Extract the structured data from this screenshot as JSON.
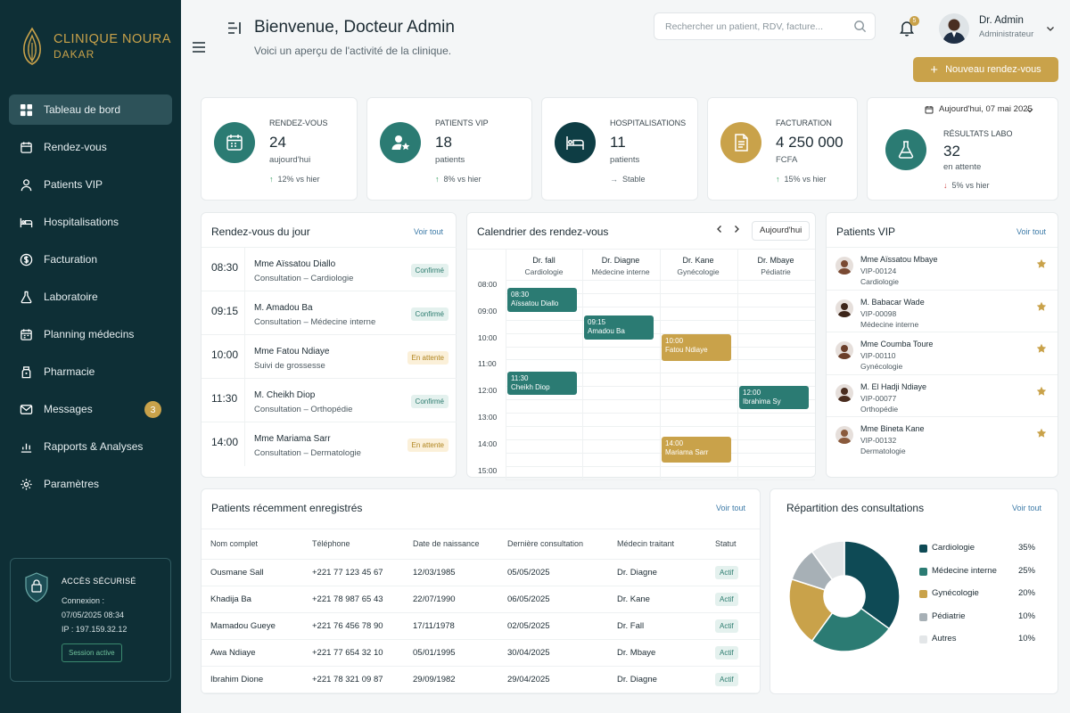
{
  "brand": {
    "line1": "CLINIQUE NOURA",
    "line2": "DAKAR"
  },
  "sidebar": {
    "items": [
      {
        "label": "Tableau de bord",
        "icon": "grid-icon"
      },
      {
        "label": "Rendez-vous",
        "icon": "calendar-icon"
      },
      {
        "label": "Patients VIP",
        "icon": "user-icon"
      },
      {
        "label": "Hospitalisations",
        "icon": "bed-icon"
      },
      {
        "label": "Facturation",
        "icon": "dollar-icon"
      },
      {
        "label": "Laboratoire",
        "icon": "flask-icon"
      },
      {
        "label": "Planning médecins",
        "icon": "calendar-check-icon"
      },
      {
        "label": "Pharmacie",
        "icon": "pill-icon"
      },
      {
        "label": "Messages",
        "icon": "mail-icon",
        "badge": "3"
      },
      {
        "label": "Rapports & Analyses",
        "icon": "chart-icon"
      },
      {
        "label": "Paramètres",
        "icon": "gear-icon"
      }
    ],
    "secure": {
      "title": "ACCÈS SÉCURISÉ",
      "line1": "Connexion :",
      "line2": "07/05/2025 08:34",
      "line3": "IP : 197.159.32.12",
      "session": "Session active"
    }
  },
  "header": {
    "title": "Bienvenue, Docteur Admin",
    "subtitle": "Voici un aperçu de l'activité de la clinique.",
    "search_placeholder": "Rechercher un patient, RDV, facture...",
    "notif_count": "5",
    "user_name": "Dr. Admin",
    "user_role": "Administrateur",
    "new_button": "Nouveau rendez-vous"
  },
  "stats": [
    {
      "label": "RENDEZ-VOUS",
      "value": "24",
      "unit": "aujourd'hui",
      "trend": "12% vs hier",
      "dir": "up",
      "color": "#2b7b73"
    },
    {
      "label": "PATIENTS VIP",
      "value": "18",
      "unit": "patients",
      "trend": "8% vs hier",
      "dir": "up",
      "color": "#2b7b73"
    },
    {
      "label": "HOSPITALISATIONS",
      "value": "11",
      "unit": "patients",
      "trend": "Stable",
      "dir": "neutral",
      "color": "#0e3d44"
    },
    {
      "label": "FACTURATION",
      "value": "4 250 000",
      "unit": "FCFA",
      "trend": "15% vs hier",
      "dir": "up",
      "color": "#c9a24a"
    },
    {
      "label": "RÉSULTATS LABO",
      "value": "32",
      "unit": "en attente",
      "trend": "5% vs hier",
      "dir": "down",
      "color": "#2b7b73"
    }
  ],
  "date_label": "Aujourd'hui, 07 mai 2025",
  "rdv": {
    "title": "Rendez-vous du jour",
    "link": "Voir tout",
    "rows": [
      {
        "time": "08:30",
        "name": "Mme Aïssatou Diallo",
        "type": "Consultation – Cardiologie",
        "status": "Confirmé",
        "kind": "ok"
      },
      {
        "time": "09:15",
        "name": "M. Amadou Ba",
        "type": "Consultation – Médecine interne",
        "status": "Confirmé",
        "kind": "ok"
      },
      {
        "time": "10:00",
        "name": "Mme Fatou Ndiaye",
        "type": "Suivi de grossesse",
        "status": "En attente",
        "kind": "wait"
      },
      {
        "time": "11:30",
        "name": "M. Cheikh Diop",
        "type": "Consultation – Orthopédie",
        "status": "Confirmé",
        "kind": "ok"
      },
      {
        "time": "14:00",
        "name": "Mme Mariama Sarr",
        "type": "Consultation – Dermatologie",
        "status": "En attente",
        "kind": "wait"
      }
    ]
  },
  "calendar": {
    "title": "Calendrier des rendez-vous",
    "today": "Aujourd'hui",
    "doctors": [
      {
        "name": "Dr. fall",
        "spec": "Cardiologie"
      },
      {
        "name": "Dr. Diagne",
        "spec": "Médecine interne"
      },
      {
        "name": "Dr. Kane",
        "spec": "Gynécologie"
      },
      {
        "name": "Dr. Mbaye",
        "spec": "Pédiatrie"
      }
    ],
    "hours": [
      "08:00",
      "09:00",
      "10:00",
      "11:00",
      "12:00",
      "13:00",
      "14:00",
      "15:00"
    ],
    "events": [
      {
        "time": "08:30",
        "name": "Aïssatou Diallo",
        "col": 0,
        "start": 8.3,
        "end": 9.2,
        "color": "teal"
      },
      {
        "time": "09:15",
        "name": "Amadou Ba",
        "col": 1,
        "start": 9.35,
        "end": 10.25,
        "color": "teal"
      },
      {
        "time": "10:00",
        "name": "Fatou Ndiaye",
        "col": 2,
        "start": 10.05,
        "end": 11.05,
        "color": "gold"
      },
      {
        "time": "11:30",
        "name": "Cheikh Diop",
        "col": 0,
        "start": 11.47,
        "end": 12.33,
        "color": "teal"
      },
      {
        "time": "12:00",
        "name": "Ibrahima Sy",
        "col": 3,
        "start": 12.0,
        "end": 12.87,
        "color": "teal"
      },
      {
        "time": "14:00",
        "name": "Mariama Sarr",
        "col": 2,
        "start": 13.92,
        "end": 14.87,
        "color": "gold"
      }
    ]
  },
  "vip": {
    "title": "Patients VIP",
    "link": "Voir tout",
    "rows": [
      {
        "name": "Mme Aïssatou Mbaye",
        "id": "VIP-00124",
        "spec": "Cardiologie"
      },
      {
        "name": "M. Babacar Wade",
        "id": "VIP-00098",
        "spec": "Médecine interne"
      },
      {
        "name": "Mme Coumba Toure",
        "id": "VIP-00110",
        "spec": "Gynécologie"
      },
      {
        "name": "M. El Hadji Ndiaye",
        "id": "VIP-00077",
        "spec": "Orthopédie"
      },
      {
        "name": "Mme Bineta Kane",
        "id": "VIP-00132",
        "spec": "Dermatologie"
      }
    ]
  },
  "patients": {
    "title": "Patients récemment enregistrés",
    "link": "Voir tout",
    "columns": [
      "Nom complet",
      "Téléphone",
      "Date de naissance",
      "Dernière consultation",
      "Médecin traitant",
      "Statut"
    ],
    "rows": [
      [
        "Ousmane Sall",
        "+221 77 123 45 67",
        "12/03/1985",
        "05/05/2025",
        "Dr. Diagne",
        "Actif"
      ],
      [
        "Khadija Ba",
        "+221 78 987 65 43",
        "22/07/1990",
        "06/05/2025",
        "Dr. Kane",
        "Actif"
      ],
      [
        "Mamadou Gueye",
        "+221 76 456 78 90",
        "17/11/1978",
        "02/05/2025",
        "Dr. Fall",
        "Actif"
      ],
      [
        "Awa Ndiaye",
        "+221 77 654 32 10",
        "05/01/1995",
        "30/04/2025",
        "Dr. Mbaye",
        "Actif"
      ],
      [
        "Ibrahim Dione",
        "+221 78 321 09 87",
        "29/09/1982",
        "29/04/2025",
        "Dr. Diagne",
        "Actif"
      ]
    ]
  },
  "repartition": {
    "title": "Répartition des consultations",
    "link": "Voir tout",
    "slices": [
      {
        "label": "Cardiologie",
        "value": 35,
        "pct": "35%",
        "color": "#0e4a55"
      },
      {
        "label": "Médecine interne",
        "value": 25,
        "pct": "25%",
        "color": "#2b7b73"
      },
      {
        "label": "Gynécologie",
        "value": 20,
        "pct": "20%",
        "color": "#c9a24a"
      },
      {
        "label": "Pédiatrie",
        "value": 10,
        "pct": "10%",
        "color": "#a7b0b6"
      },
      {
        "label": "Autres",
        "value": 10,
        "pct": "10%",
        "color": "#e3e6e8"
      }
    ]
  }
}
